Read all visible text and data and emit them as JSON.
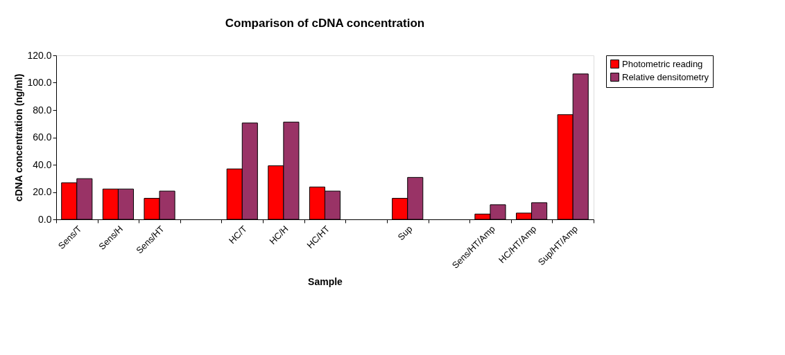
{
  "chart_data": {
    "type": "bar",
    "title": "Comparison of cDNA concentration",
    "xlabel": "Sample",
    "ylabel": "cDNA concentration (ng/ml)",
    "categories": [
      "Sens/T",
      "Sens/H",
      "Sens/HT",
      null,
      "HC/T",
      "HC/H",
      "HC/HT",
      null,
      "Sup",
      null,
      "Sens/HT/Amp",
      "HC/HT/Amp",
      "Sup/HT/Amp"
    ],
    "series": [
      {
        "name": "Photometric reading",
        "color": "#ff0000",
        "values": [
          26.8,
          22.2,
          15.4,
          null,
          36.9,
          39.2,
          23.7,
          null,
          15.4,
          null,
          3.9,
          4.6,
          76.6
        ]
      },
      {
        "name": "Relative densitometry",
        "color": "#993366",
        "values": [
          29.8,
          22.2,
          20.7,
          null,
          70.5,
          71.2,
          20.7,
          null,
          30.7,
          null,
          10.7,
          12.2,
          106.4
        ]
      }
    ],
    "ylim": [
      0,
      120
    ],
    "yticks": [
      {
        "value": 0,
        "label": "0.0"
      },
      {
        "value": 20,
        "label": "20.0"
      },
      {
        "value": 40,
        "label": "40.0"
      },
      {
        "value": 60,
        "label": "60.0"
      },
      {
        "value": 80,
        "label": "80.0"
      },
      {
        "value": 100,
        "label": "100.0"
      },
      {
        "value": 120,
        "label": "120.0"
      }
    ],
    "grid": false,
    "legend": "right"
  }
}
